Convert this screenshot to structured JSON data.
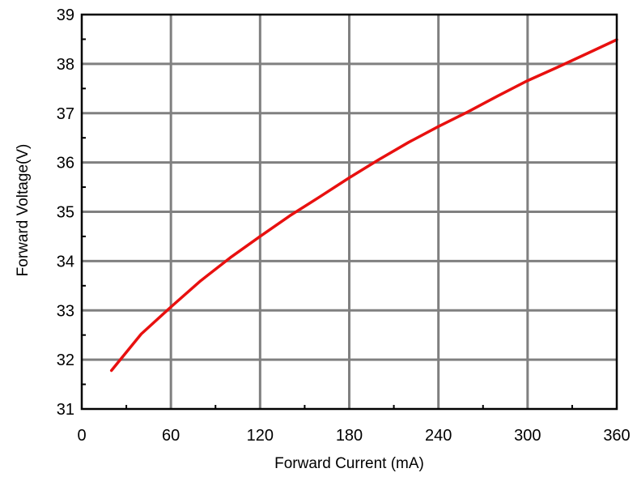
{
  "chart_data": {
    "type": "line",
    "title": "",
    "xlabel": "Forward Current (mA)",
    "ylabel": "Forward Voltage(V)",
    "xlim": [
      0,
      360
    ],
    "ylim": [
      31,
      39
    ],
    "xticks": [
      0,
      60,
      120,
      180,
      240,
      300,
      360
    ],
    "yticks": [
      31,
      32,
      33,
      34,
      35,
      36,
      37,
      38,
      39
    ],
    "grid": true,
    "legend": "none",
    "series": [
      {
        "color": "#e8100f",
        "x": [
          20,
          40,
          60,
          80,
          100,
          120,
          140,
          160,
          180,
          200,
          220,
          240,
          260,
          280,
          300,
          320,
          340,
          360
        ],
        "y": [
          31.78,
          32.52,
          33.07,
          33.6,
          34.07,
          34.5,
          34.92,
          35.3,
          35.69,
          36.06,
          36.41,
          36.73,
          37.03,
          37.35,
          37.66,
          37.93,
          38.21,
          38.49
        ]
      }
    ]
  }
}
